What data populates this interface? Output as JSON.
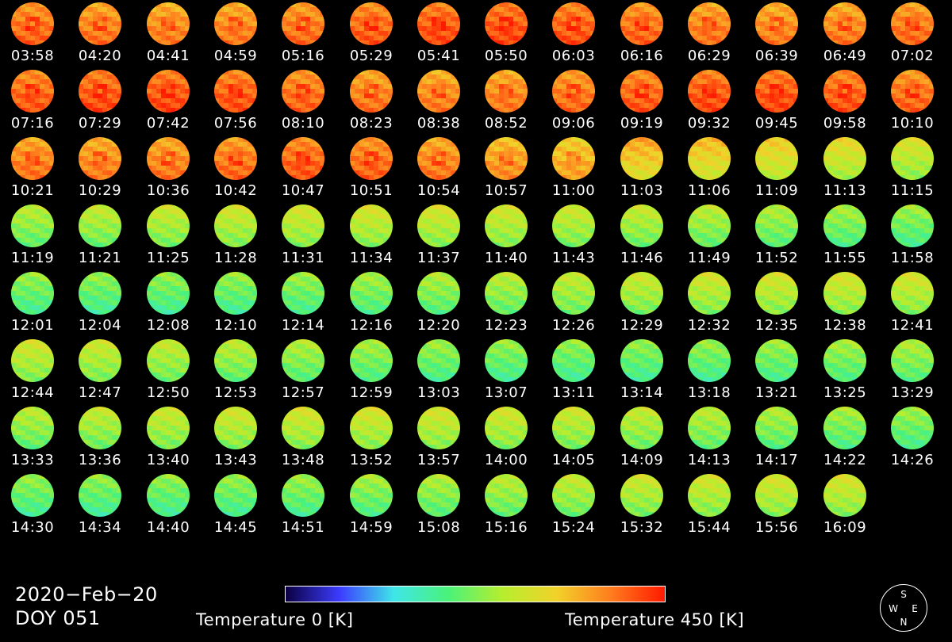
{
  "colors": {
    "background": "#000000",
    "text": "#ffffff",
    "colormap_stops": [
      "#0b0042",
      "#3c3cff",
      "#3fe6e8",
      "#4af27a",
      "#b6ee2e",
      "#f2d22a",
      "#ff7d1e",
      "#ff1a00"
    ]
  },
  "times": [
    "03:58",
    "04:20",
    "04:41",
    "04:59",
    "05:16",
    "05:29",
    "05:41",
    "05:50",
    "06:03",
    "06:16",
    "06:29",
    "06:39",
    "06:49",
    "07:02",
    "07:16",
    "07:29",
    "07:42",
    "07:56",
    "08:10",
    "08:23",
    "08:38",
    "08:52",
    "09:06",
    "09:19",
    "09:32",
    "09:45",
    "09:58",
    "10:10",
    "10:21",
    "10:29",
    "10:36",
    "10:42",
    "10:47",
    "10:51",
    "10:54",
    "10:57",
    "11:00",
    "11:03",
    "11:06",
    "11:09",
    "11:13",
    "11:15",
    "11:19",
    "11:21",
    "11:25",
    "11:28",
    "11:31",
    "11:34",
    "11:37",
    "11:40",
    "11:43",
    "11:46",
    "11:49",
    "11:52",
    "11:55",
    "11:58",
    "12:01",
    "12:04",
    "12:08",
    "12:10",
    "12:14",
    "12:16",
    "12:20",
    "12:23",
    "12:26",
    "12:29",
    "12:32",
    "12:35",
    "12:38",
    "12:41",
    "12:44",
    "12:47",
    "12:50",
    "12:53",
    "12:57",
    "12:59",
    "13:03",
    "13:07",
    "13:11",
    "13:14",
    "13:18",
    "13:21",
    "13:25",
    "13:29",
    "13:33",
    "13:36",
    "13:40",
    "13:43",
    "13:48",
    "13:52",
    "13:57",
    "14:00",
    "14:05",
    "14:09",
    "14:13",
    "14:17",
    "14:22",
    "14:26",
    "14:30",
    "14:34",
    "14:40",
    "14:45",
    "14:51",
    "14:59",
    "15:08",
    "15:16",
    "15:24",
    "15:32",
    "15:44",
    "15:56",
    "16:09"
  ],
  "date": "2020−Feb−20",
  "doy": "DOY 051",
  "colorbar": {
    "min_label": "Temperature 0 [K]",
    "max_label": "Temperature 450 [K]",
    "min_value": 0,
    "max_value": 450,
    "unit": "K"
  },
  "compass": {
    "s": "S",
    "w": "W",
    "e": "E",
    "n": "N"
  }
}
